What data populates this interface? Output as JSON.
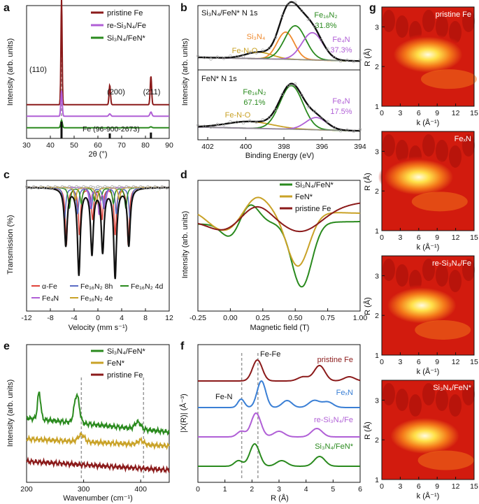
{
  "colors": {
    "pristine": "#8b1a1a",
    "re": "#b05fd6",
    "si": "#2a8a1e",
    "fen": "#c9a227",
    "blue": "#3a7fd5",
    "orange": "#ef8a2e",
    "grey": "#8c8c8c",
    "black": "#111111",
    "red": "#e0433a",
    "navy": "#5b6cc4"
  },
  "chart_data": [
    {
      "panel": "a",
      "type": "line",
      "xlabel": "2θ (°)",
      "ylabel": "Intensity (arb. units)",
      "xlim": [
        30,
        90
      ],
      "xticks": [
        "30",
        "40",
        "50",
        "60",
        "70",
        "80",
        "90"
      ],
      "legend": [
        "pristine Fe",
        "re-Si3N4/Fe",
        "Si3N4/FeN*"
      ],
      "annotations": [
        "(110)",
        "(200)",
        "(211)",
        "Fe (96-900-2673)"
      ],
      "series": [
        {
          "name": "pristine Fe",
          "baseline": 0.58,
          "peaks": [
            [
              44.7,
              2.3,
              0.25
            ],
            [
              65.0,
              0.42,
              0.3
            ],
            [
              82.3,
              0.62,
              0.3
            ]
          ]
        },
        {
          "name": "re-Si3N4/Fe",
          "baseline": 0.33,
          "peaks": [
            [
              44.7,
              0.55,
              0.3
            ],
            [
              65.0,
              0.05,
              0.4
            ],
            [
              82.3,
              0.09,
              0.4
            ]
          ]
        },
        {
          "name": "Si3N4/FeN*",
          "baseline": 0.08,
          "peaks": [
            [
              44.7,
              0.16,
              0.35
            ],
            [
              82.3,
              0.02,
              0.4
            ]
          ]
        }
      ],
      "reference_lines": [
        [
          44.7,
          1.0
        ],
        [
          65.0,
          0.3
        ],
        [
          82.3,
          0.35
        ]
      ]
    },
    {
      "panel": "b",
      "type": "line",
      "xlabel": "Binding Energy (eV)",
      "ylabel": "Intensity (arb. units)",
      "xlim": [
        402.5,
        394
      ],
      "xticks": [
        "402",
        "400",
        "398",
        "396",
        "394"
      ],
      "subpanels": [
        {
          "title": "Si3N4/FeN* N 1s",
          "components": [
            {
              "name": "Fe-N-O",
              "center": 399.3,
              "amp": 0.12,
              "sigma": 0.7
            },
            {
              "name": "Si3N4",
              "center": 397.9,
              "amp": 0.5,
              "sigma": 0.45
            },
            {
              "name": "Fe16N2",
              "center": 397.4,
              "amp": 0.62,
              "sigma": 0.55
            },
            {
              "name": "Fe4N",
              "center": 396.5,
              "amp": 0.5,
              "sigma": 0.55
            }
          ],
          "labels": [
            "Fe16N2",
            "31.8%",
            "Si3N4",
            "Fe-N-O",
            "Fe4N",
            "37.3%"
          ]
        },
        {
          "title": "FeN* N 1s",
          "components": [
            {
              "name": "Fe-N-O",
              "center": 399.8,
              "amp": 0.12,
              "sigma": 1.2
            },
            {
              "name": "Fe16N2",
              "center": 397.6,
              "amp": 0.78,
              "sigma": 0.6
            },
            {
              "name": "Fe4N",
              "center": 396.3,
              "amp": 0.22,
              "sigma": 0.55
            }
          ],
          "labels": [
            "Fe16N2",
            "67.1%",
            "Fe4N",
            "17.5%",
            "Fe-N-O"
          ]
        }
      ]
    },
    {
      "panel": "c",
      "type": "line",
      "xlabel": "Velocity (mm s⁻¹)",
      "ylabel": "Transmission (%)",
      "xlim": [
        -12,
        12
      ],
      "xticks": [
        "-12",
        "-8",
        "-4",
        "0",
        "4",
        "8",
        "12"
      ],
      "legend": [
        "α-Fe",
        "Fe16N2 8h",
        "Fe16N2 4d",
        "Fe4N",
        "Fe16N2 4e"
      ],
      "total_dips": [
        [
          -5.4,
          0.55
        ],
        [
          -3.2,
          0.82
        ],
        [
          -1.0,
          0.62
        ],
        [
          0.8,
          0.6
        ],
        [
          2.9,
          0.85
        ],
        [
          5.2,
          0.55
        ]
      ]
    },
    {
      "panel": "d",
      "type": "line",
      "xlabel": "Magnetic field (T)",
      "ylabel": "Intensity (arb. units)",
      "xlim": [
        -0.25,
        1.0
      ],
      "xticks": [
        "-0.25",
        "0.00",
        "0.25",
        "0.50",
        "0.75",
        "1.00"
      ],
      "legend": [
        "Si3N4/FeN*",
        "FeN*",
        "pristine Fe"
      ]
    },
    {
      "panel": "e",
      "type": "line",
      "xlabel": "Wavenumber (cm⁻¹)",
      "ylabel": "Intensity (arb. units)",
      "xlim": [
        200,
        450
      ],
      "xticks": [
        "200",
        "300",
        "400"
      ],
      "legend": [
        "Si3N4/FeN*",
        "FeN*",
        "pristine Fe"
      ],
      "dashed_lines": [
        296,
        405
      ]
    },
    {
      "panel": "f",
      "type": "line",
      "xlabel": "R (Å)",
      "ylabel": "|X(R)| (Å⁻³)",
      "xlim": [
        0,
        6
      ],
      "xticks": [
        "0",
        "1",
        "2",
        "3",
        "4",
        "5",
        "6"
      ],
      "series_labels": [
        "pristine Fe",
        "FexN",
        "re-Si3N4/Fe",
        "Si3N4/FeN*"
      ],
      "annotations": [
        "Fe-Fe",
        "Fe-N"
      ],
      "dashed_lines": [
        1.62,
        2.22
      ]
    },
    {
      "panel": "g",
      "type": "heatmap",
      "xlabel": "k (Å⁻¹)",
      "ylabel": "R (Å)",
      "xlim": [
        0,
        15
      ],
      "ylim": [
        1,
        3.5
      ],
      "xticks": [
        "0",
        "3",
        "6",
        "9",
        "12",
        "15"
      ],
      "yticks": [
        "1",
        "2",
        "3"
      ],
      "maps": [
        {
          "label": "pristine Fe",
          "peak": [
            7.5,
            2.3
          ]
        },
        {
          "label": "FexN",
          "peak": [
            6.0,
            2.35
          ]
        },
        {
          "label": "re-Si3N4/Fe",
          "peak": [
            6.5,
            2.25
          ]
        },
        {
          "label": "Si3N4/FeN*",
          "peak": [
            7.0,
            2.1
          ]
        }
      ]
    }
  ]
}
